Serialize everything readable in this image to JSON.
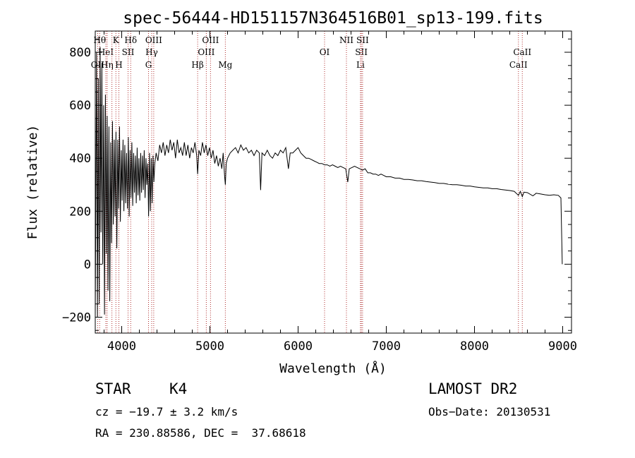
{
  "chart_data": {
    "type": "line",
    "title": "spec-56444-HD151157N364516B01_sp13-199.fits",
    "xlabel": "Wavelength (Å)",
    "ylabel": "Flux (relative)",
    "xlim": [
      3700,
      9100
    ],
    "ylim": [
      -260,
      880
    ],
    "xticks": [
      4000,
      5000,
      6000,
      7000,
      8000,
      9000
    ],
    "yticks": [
      -200,
      0,
      200,
      400,
      600,
      800
    ],
    "grid": false,
    "series": [
      {
        "name": "flux",
        "points": [
          [
            3700,
            -200
          ],
          [
            3715,
            800
          ],
          [
            3725,
            -200
          ],
          [
            3735,
            700
          ],
          [
            3745,
            -150
          ],
          [
            3755,
            820
          ],
          [
            3765,
            120
          ],
          [
            3775,
            760
          ],
          [
            3785,
            0
          ],
          [
            3795,
            600
          ],
          [
            3805,
            -190
          ],
          [
            3815,
            640
          ],
          [
            3825,
            40
          ],
          [
            3835,
            560
          ],
          [
            3845,
            -100
          ],
          [
            3855,
            520
          ],
          [
            3865,
            -140
          ],
          [
            3875,
            460
          ],
          [
            3885,
            80
          ],
          [
            3895,
            540
          ],
          [
            3905,
            150
          ],
          [
            3915,
            470
          ],
          [
            3925,
            180
          ],
          [
            3935,
            500
          ],
          [
            3945,
            60
          ],
          [
            3955,
            470
          ],
          [
            3965,
            210
          ],
          [
            3975,
            520
          ],
          [
            3985,
            160
          ],
          [
            3995,
            430
          ],
          [
            4005,
            240
          ],
          [
            4015,
            470
          ],
          [
            4025,
            200
          ],
          [
            4035,
            450
          ],
          [
            4045,
            230
          ],
          [
            4055,
            420
          ],
          [
            4065,
            210
          ],
          [
            4075,
            480
          ],
          [
            4085,
            180
          ],
          [
            4095,
            430
          ],
          [
            4105,
            250
          ],
          [
            4115,
            460
          ],
          [
            4125,
            220
          ],
          [
            4135,
            420
          ],
          [
            4145,
            270
          ],
          [
            4155,
            410
          ],
          [
            4165,
            230
          ],
          [
            4175,
            440
          ],
          [
            4185,
            260
          ],
          [
            4195,
            400
          ],
          [
            4205,
            240
          ],
          [
            4215,
            420
          ],
          [
            4225,
            270
          ],
          [
            4235,
            410
          ],
          [
            4245,
            280
          ],
          [
            4255,
            430
          ],
          [
            4265,
            250
          ],
          [
            4275,
            400
          ],
          [
            4285,
            300
          ],
          [
            4295,
            380
          ],
          [
            4305,
            180
          ],
          [
            4315,
            420
          ],
          [
            4325,
            200
          ],
          [
            4335,
            400
          ],
          [
            4345,
            230
          ],
          [
            4355,
            410
          ],
          [
            4365,
            310
          ],
          [
            4375,
            380
          ],
          [
            4390,
            420
          ],
          [
            4410,
            390
          ],
          [
            4430,
            450
          ],
          [
            4450,
            420
          ],
          [
            4470,
            460
          ],
          [
            4490,
            410
          ],
          [
            4510,
            450
          ],
          [
            4530,
            420
          ],
          [
            4550,
            470
          ],
          [
            4570,
            430
          ],
          [
            4590,
            460
          ],
          [
            4610,
            400
          ],
          [
            4630,
            470
          ],
          [
            4650,
            420
          ],
          [
            4670,
            440
          ],
          [
            4690,
            410
          ],
          [
            4710,
            460
          ],
          [
            4730,
            410
          ],
          [
            4750,
            450
          ],
          [
            4770,
            400
          ],
          [
            4790,
            440
          ],
          [
            4810,
            420
          ],
          [
            4830,
            460
          ],
          [
            4850,
            410
          ],
          [
            4861,
            340
          ],
          [
            4875,
            430
          ],
          [
            4895,
            410
          ],
          [
            4915,
            460
          ],
          [
            4935,
            420
          ],
          [
            4955,
            450
          ],
          [
            4975,
            410
          ],
          [
            4995,
            440
          ],
          [
            5015,
            400
          ],
          [
            5035,
            430
          ],
          [
            5055,
            380
          ],
          [
            5075,
            410
          ],
          [
            5095,
            370
          ],
          [
            5115,
            400
          ],
          [
            5135,
            360
          ],
          [
            5150,
            420
          ],
          [
            5167,
            330
          ],
          [
            5175,
            300
          ],
          [
            5185,
            380
          ],
          [
            5200,
            400
          ],
          [
            5230,
            420
          ],
          [
            5260,
            430
          ],
          [
            5290,
            440
          ],
          [
            5320,
            420
          ],
          [
            5350,
            450
          ],
          [
            5380,
            430
          ],
          [
            5410,
            440
          ],
          [
            5440,
            420
          ],
          [
            5470,
            430
          ],
          [
            5500,
            410
          ],
          [
            5530,
            430
          ],
          [
            5560,
            420
          ],
          [
            5575,
            280
          ],
          [
            5590,
            420
          ],
          [
            5620,
            410
          ],
          [
            5650,
            430
          ],
          [
            5680,
            410
          ],
          [
            5710,
            400
          ],
          [
            5740,
            420
          ],
          [
            5770,
            410
          ],
          [
            5800,
            430
          ],
          [
            5830,
            420
          ],
          [
            5860,
            440
          ],
          [
            5890,
            360
          ],
          [
            5910,
            420
          ],
          [
            5940,
            420
          ],
          [
            5970,
            430
          ],
          [
            6000,
            440
          ],
          [
            6030,
            420
          ],
          [
            6060,
            410
          ],
          [
            6090,
            400
          ],
          [
            6120,
            400
          ],
          [
            6150,
            395
          ],
          [
            6180,
            390
          ],
          [
            6210,
            385
          ],
          [
            6240,
            380
          ],
          [
            6270,
            380
          ],
          [
            6300,
            375
          ],
          [
            6330,
            375
          ],
          [
            6360,
            370
          ],
          [
            6390,
            375
          ],
          [
            6420,
            370
          ],
          [
            6450,
            365
          ],
          [
            6480,
            370
          ],
          [
            6510,
            365
          ],
          [
            6540,
            360
          ],
          [
            6563,
            310
          ],
          [
            6580,
            360
          ],
          [
            6610,
            365
          ],
          [
            6640,
            370
          ],
          [
            6670,
            365
          ],
          [
            6700,
            360
          ],
          [
            6730,
            355
          ],
          [
            6760,
            360
          ],
          [
            6790,
            345
          ],
          [
            6820,
            345
          ],
          [
            6850,
            340
          ],
          [
            6880,
            340
          ],
          [
            6910,
            335
          ],
          [
            6940,
            340
          ],
          [
            6970,
            335
          ],
          [
            7000,
            330
          ],
          [
            7050,
            330
          ],
          [
            7100,
            325
          ],
          [
            7150,
            325
          ],
          [
            7200,
            320
          ],
          [
            7250,
            320
          ],
          [
            7300,
            318
          ],
          [
            7350,
            315
          ],
          [
            7400,
            315
          ],
          [
            7450,
            312
          ],
          [
            7500,
            310
          ],
          [
            7550,
            308
          ],
          [
            7600,
            305
          ],
          [
            7650,
            305
          ],
          [
            7700,
            302
          ],
          [
            7750,
            300
          ],
          [
            7800,
            300
          ],
          [
            7850,
            298
          ],
          [
            7900,
            295
          ],
          [
            7950,
            295
          ],
          [
            8000,
            292
          ],
          [
            8050,
            290
          ],
          [
            8100,
            288
          ],
          [
            8150,
            288
          ],
          [
            8200,
            285
          ],
          [
            8250,
            285
          ],
          [
            8300,
            282
          ],
          [
            8350,
            280
          ],
          [
            8400,
            278
          ],
          [
            8450,
            275
          ],
          [
            8498,
            260
          ],
          [
            8520,
            275
          ],
          [
            8542,
            255
          ],
          [
            8560,
            272
          ],
          [
            8600,
            270
          ],
          [
            8662,
            258
          ],
          [
            8700,
            268
          ],
          [
            8750,
            265
          ],
          [
            8800,
            262
          ],
          [
            8850,
            260
          ],
          [
            8900,
            262
          ],
          [
            8950,
            260
          ],
          [
            8980,
            250
          ],
          [
            8995,
            0
          ]
        ]
      }
    ],
    "lines": [
      {
        "wl": 3727,
        "row": 3,
        "label": "OII"
      },
      {
        "wl": 3750,
        "row": 1,
        "label": "Hθ"
      },
      {
        "wl": 3820,
        "row": 2,
        "label": "HeI"
      },
      {
        "wl": 3835,
        "row": 3,
        "label": "Hη"
      },
      {
        "wl": 3889,
        "row": 1,
        "label": ""
      },
      {
        "wl": 3934,
        "row": 1,
        "label": "K"
      },
      {
        "wl": 3968,
        "row": 3,
        "label": "H"
      },
      {
        "wl": 4072,
        "row": 2,
        "label": "SII"
      },
      {
        "wl": 4102,
        "row": 1,
        "label": "Hδ"
      },
      {
        "wl": 4304,
        "row": 3,
        "label": "G"
      },
      {
        "wl": 4340,
        "row": 2,
        "label": "Hγ"
      },
      {
        "wl": 4363,
        "row": 1,
        "label": "OIII"
      },
      {
        "wl": 4861,
        "row": 3,
        "label": "Hβ"
      },
      {
        "wl": 4959,
        "row": 2,
        "label": "OIII"
      },
      {
        "wl": 5007,
        "row": 1,
        "label": "OIII"
      },
      {
        "wl": 5175,
        "row": 3,
        "label": "Mg"
      },
      {
        "wl": 6300,
        "row": 2,
        "label": "OI"
      },
      {
        "wl": 6548,
        "row": 1,
        "label": "NII"
      },
      {
        "wl": 6707,
        "row": 3,
        "label": "Li"
      },
      {
        "wl": 6717,
        "row": 2,
        "label": "SII"
      },
      {
        "wl": 6731,
        "row": 1,
        "label": "SII"
      },
      {
        "wl": 8498,
        "row": 3,
        "label": "CaII"
      },
      {
        "wl": 8542,
        "row": 2,
        "label": "CaII"
      }
    ],
    "line_color": "#b03030"
  },
  "info": {
    "object_class": "STAR",
    "subclass": "K4",
    "survey": "LAMOST DR2",
    "cz": "cz = −19.7 ± 3.2 km/s",
    "obs_date": "Obs−Date: 20130531",
    "coords": "RA = 230.88586, DEC =  37.68618"
  }
}
